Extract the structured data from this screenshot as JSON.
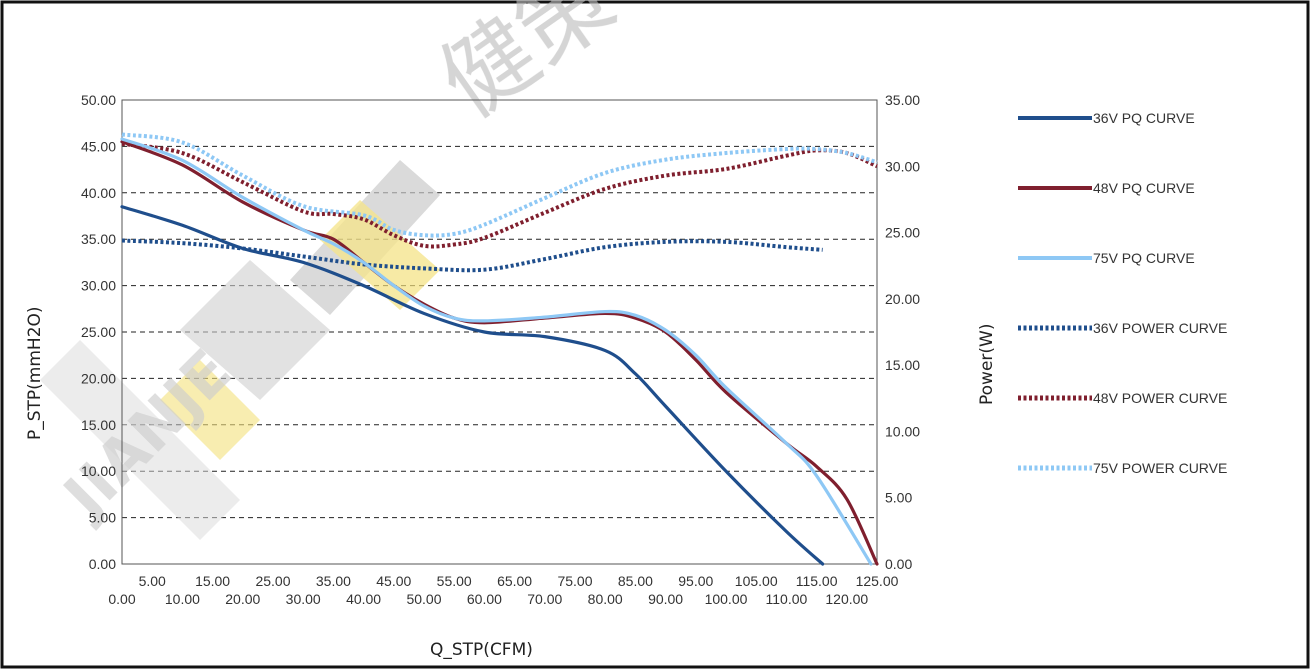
{
  "watermark": {
    "logo_text": "JIANJE",
    "cn_text": "健策"
  },
  "chart_data": {
    "type": "line",
    "xlabel": "Q_STP(CFM)",
    "ylabel": "P_STP(mmH2O)",
    "y2label": "Power(W)",
    "xlim": [
      0,
      125
    ],
    "ylim": [
      0,
      50
    ],
    "y2lim": [
      0,
      35
    ],
    "grid": true,
    "legend_position": "right",
    "x_ticks_top_row": [
      "5.00",
      "15.00",
      "25.00",
      "35.00",
      "45.00",
      "55.00",
      "65.00",
      "75.00",
      "85.00",
      "95.00",
      "105.00",
      "115.00",
      "125.00"
    ],
    "x_ticks_bottom_row": [
      "0.00",
      "10.00",
      "20.00",
      "30.00",
      "40.00",
      "50.00",
      "60.00",
      "70.00",
      "80.00",
      "90.00",
      "100.00",
      "110.00",
      "120.00"
    ],
    "y_ticks": [
      "0.00",
      "5.00",
      "10.00",
      "15.00",
      "20.00",
      "25.00",
      "30.00",
      "35.00",
      "40.00",
      "45.00",
      "50.00"
    ],
    "y2_ticks": [
      "0.00",
      "5.00",
      "10.00",
      "15.00",
      "20.00",
      "25.00",
      "30.00",
      "35.00"
    ],
    "series": [
      {
        "name": "36V PQ CURVE",
        "axis": "left",
        "style": "solid",
        "color": "#1f4e8c",
        "x": [
          0,
          10,
          20,
          30,
          40,
          50,
          60,
          70,
          80,
          85,
          90,
          100,
          110,
          116
        ],
        "y": [
          38.5,
          36.5,
          34,
          32.5,
          30,
          27,
          25,
          24.5,
          23,
          20.5,
          17,
          10,
          3.5,
          0
        ]
      },
      {
        "name": "48V PQ CURVE",
        "axis": "left",
        "style": "solid",
        "color": "#7f1f2e",
        "x": [
          0,
          10,
          20,
          30,
          35,
          40,
          45,
          50,
          55,
          60,
          70,
          80,
          85,
          90,
          95,
          100,
          110,
          115,
          120,
          125
        ],
        "y": [
          45.5,
          43,
          39,
          36,
          35,
          32.5,
          30,
          28,
          26.5,
          26,
          26.5,
          27,
          26.5,
          25,
          22,
          18.5,
          13,
          10.5,
          7,
          0
        ]
      },
      {
        "name": "75V PQ CURVE",
        "axis": "left",
        "style": "solid",
        "color": "#8ec8f5",
        "x": [
          0,
          10,
          20,
          30,
          35,
          40,
          45,
          50,
          55,
          60,
          70,
          80,
          85,
          90,
          95,
          100,
          110,
          115,
          124
        ],
        "y": [
          45.8,
          43.5,
          39.5,
          36,
          34.5,
          32.5,
          30,
          27.8,
          26.5,
          26.2,
          26.6,
          27.2,
          26.8,
          25.2,
          22.5,
          19,
          13,
          9.5,
          0
        ]
      },
      {
        "name": "36V  POWER CURVE",
        "axis": "right",
        "style": "dotted",
        "color": "#1f4e8c",
        "x": [
          0,
          10,
          20,
          30,
          40,
          50,
          60,
          70,
          80,
          90,
          100,
          110,
          116
        ],
        "y": [
          24.4,
          24.2,
          23.8,
          23.2,
          22.6,
          22.3,
          22.2,
          23,
          23.9,
          24.3,
          24.3,
          23.9,
          23.7
        ]
      },
      {
        "name": "48V  POWER CURVE",
        "axis": "right",
        "style": "dotted",
        "color": "#7f1f2e",
        "x": [
          0,
          10,
          20,
          30,
          35,
          40,
          45,
          50,
          55,
          60,
          70,
          80,
          90,
          100,
          110,
          115,
          120,
          125
        ],
        "y": [
          31.7,
          31,
          28.8,
          26.6,
          26.4,
          26,
          24.8,
          24,
          24.1,
          24.6,
          26.5,
          28.3,
          29.3,
          29.8,
          30.8,
          31.2,
          31,
          30
        ]
      },
      {
        "name": "75V  POWER CURVE",
        "axis": "right",
        "style": "dotted",
        "color": "#8ec8f5",
        "x": [
          0,
          10,
          20,
          30,
          40,
          45,
          50,
          55,
          60,
          70,
          80,
          90,
          100,
          110,
          115,
          120,
          125
        ],
        "y": [
          32.4,
          31.8,
          29.3,
          27,
          26.3,
          25.2,
          24.8,
          24.9,
          25.6,
          27.6,
          29.5,
          30.5,
          31,
          31.3,
          31.3,
          31,
          30.3
        ]
      }
    ]
  }
}
